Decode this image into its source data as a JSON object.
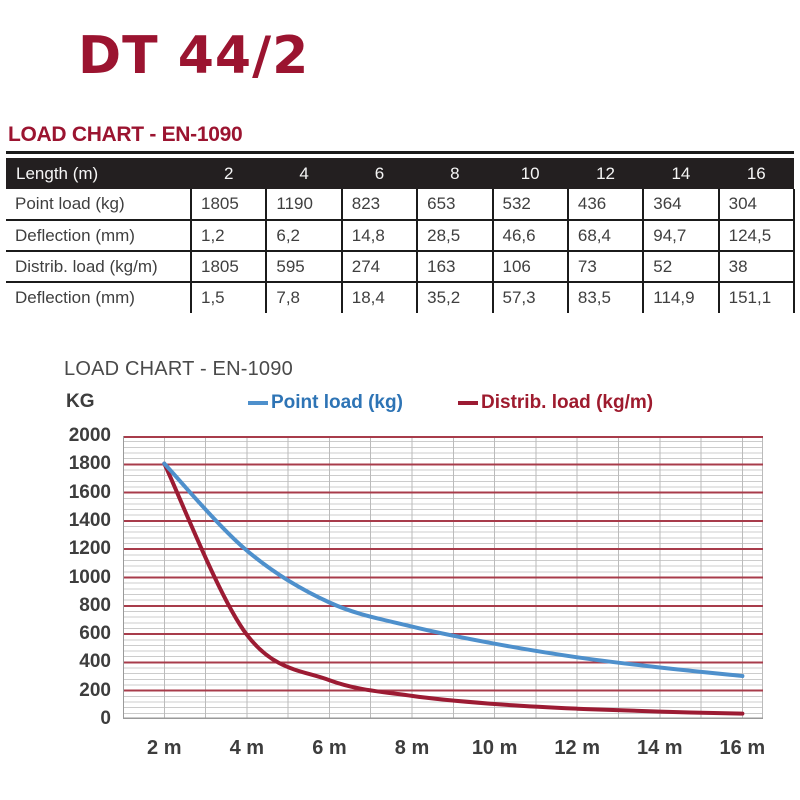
{
  "page": {
    "title": "DT 44/2"
  },
  "colors": {
    "brand_maroon": "#9B1430",
    "table_header_bg": "#231F20",
    "legend_blue": "#2E74B5",
    "legend_red": "#9E1B2E",
    "curve_blue": "#4E90CC",
    "curve_red": "#9C1B33",
    "grid_major_red": "#A83C4B",
    "grid_minor_gray": "#CCCCCC",
    "grid_vertical_gray": "#BBBBBB",
    "axis_gray": "#9A9A9A"
  },
  "table_section": {
    "heading": "LOAD CHART - EN-1090",
    "table": {
      "header": [
        "Length (m)",
        "2",
        "4",
        "6",
        "8",
        "10",
        "12",
        "14",
        "16"
      ],
      "rows": [
        {
          "label": "Point load (kg)",
          "values": [
            "1805",
            "1190",
            "823",
            "653",
            "532",
            "436",
            "364",
            "304"
          ]
        },
        {
          "label": "Deflection (mm)",
          "values": [
            "1,2",
            "6,2",
            "14,8",
            "28,5",
            "46,6",
            "68,4",
            "94,7",
            "124,5"
          ]
        },
        {
          "label": "Distrib. load (kg/m)",
          "values": [
            "1805",
            "595",
            "274",
            "163",
            "106",
            "73",
            "52",
            "38"
          ]
        },
        {
          "label": "Deflection (mm)",
          "values": [
            "1,5",
            "7,8",
            "18,4",
            "35,2",
            "57,3",
            "83,5",
            "114,9",
            "151,1"
          ]
        }
      ]
    }
  },
  "chart": {
    "title": "LOAD CHART - EN-1090",
    "y_axis_unit": "KG",
    "legend": [
      {
        "label": "Point load (kg)",
        "color": "#2E74B5",
        "line_color": "#4E90CC"
      },
      {
        "label": "Distrib. load (kg/m)",
        "color": "#9E1B2E",
        "line_color": "#9C1B33"
      }
    ]
  },
  "chart_data": {
    "type": "line",
    "title": "LOAD CHART - EN-1090",
    "xlabel": "Length (m)",
    "ylabel": "KG",
    "x": [
      2,
      4,
      6,
      8,
      10,
      12,
      14,
      16
    ],
    "series": [
      {
        "name": "Point load (kg)",
        "color": "#4E90CC",
        "values": [
          1805,
          1190,
          823,
          653,
          532,
          436,
          364,
          304
        ]
      },
      {
        "name": "Distrib. load (kg/m)",
        "color": "#9C1B33",
        "values": [
          1805,
          595,
          274,
          163,
          106,
          73,
          52,
          38
        ]
      }
    ],
    "xlim": [
      1,
      16.5
    ],
    "ylim": [
      0,
      2000
    ],
    "y_major_step": 200,
    "y_minor_step": 40,
    "x_grid_step": 1,
    "x_tick_labels": [
      "2 m",
      "4 m",
      "6 m",
      "8 m",
      "10 m",
      "12 m",
      "14 m",
      "16 m"
    ],
    "y_tick_labels": [
      "0",
      "200",
      "400",
      "600",
      "800",
      "1000",
      "1200",
      "1400",
      "1600",
      "1800",
      "2000"
    ],
    "grid": {
      "horizontal_major": "red",
      "horizontal_minor": "gray",
      "vertical": "gray"
    },
    "legend_position": "top"
  }
}
